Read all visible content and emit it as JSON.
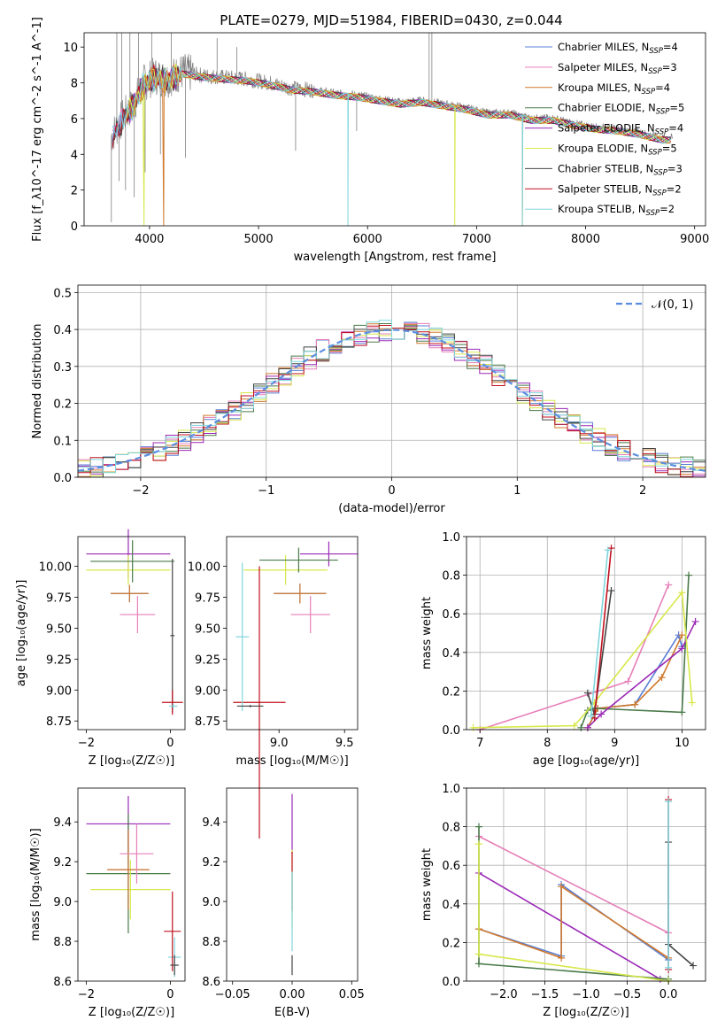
{
  "colors": {
    "Chabrier MILES": "#5b7fd6",
    "Salpeter MILES": "#e67fb8",
    "Kroupa MILES": "#d07a2e",
    "Chabrier ELODIE": "#4a7a4a",
    "Salpeter ELODIE": "#9b2ab6",
    "Kroupa ELODIE": "#d7e84a",
    "Chabrier STELIB": "#444444",
    "Salpeter STELIB": "#c0111f",
    "Kroupa STELIB": "#7fd6dc",
    "data": "#808080",
    "normal": "#5b8ee0"
  },
  "chart_data": [
    {
      "id": "spectrum",
      "type": "line",
      "title": "PLATE=0279, MJD=51984, FIBERID=0430, z=0.044",
      "xlabel": "wavelength [Angstrom, rest frame]",
      "ylabel": "Flux [f_λ10^-17 erg cm^-2 s^-1 A^-1]",
      "xlim": [
        3400,
        9100
      ],
      "ylim": [
        0,
        10.8
      ],
      "xticks": [
        4000,
        5000,
        6000,
        7000,
        8000,
        9000
      ],
      "yticks": [
        0,
        2,
        4,
        6,
        8,
        10
      ],
      "legend_position": "top-right",
      "legend": [
        {
          "label": "Chabrier MILES, N",
          "sub": "SSP",
          "tail": "=4",
          "series": "Chabrier MILES"
        },
        {
          "label": "Salpeter MILES, N",
          "sub": "SSP",
          "tail": "=3",
          "series": "Salpeter MILES"
        },
        {
          "label": "Kroupa MILES, N",
          "sub": "SSP",
          "tail": "=4",
          "series": "Kroupa MILES"
        },
        {
          "label": "Chabrier ELODIE, N",
          "sub": "SSP",
          "tail": "=5",
          "series": "Chabrier ELODIE"
        },
        {
          "label": "Salpeter ELODIE, N",
          "sub": "SSP",
          "tail": "=4",
          "series": "Salpeter ELODIE"
        },
        {
          "label": "Kroupa ELODIE, N",
          "sub": "SSP",
          "tail": "=5",
          "series": "Kroupa ELODIE"
        },
        {
          "label": "Chabrier STELIB, N",
          "sub": "SSP",
          "tail": "=3",
          "series": "Chabrier STELIB"
        },
        {
          "label": "Salpeter STELIB, N",
          "sub": "SSP",
          "tail": "=2",
          "series": "Salpeter STELIB"
        },
        {
          "label": "Kroupa STELIB, N",
          "sub": "SSP",
          "tail": "=2",
          "series": "Kroupa STELIB"
        }
      ],
      "continuum": {
        "x": [
          3650,
          3750,
          3850,
          3950,
          4050,
          4150,
          4300,
          4500,
          4700,
          4900,
          5100,
          5300,
          5500,
          5700,
          5900,
          6100,
          6300,
          6500,
          6700,
          6900,
          7100,
          7300,
          7500,
          7700,
          7900,
          8100,
          8300,
          8500,
          8700,
          8800
        ],
        "y": [
          5.0,
          6.0,
          6.8,
          8.0,
          8.4,
          8.2,
          8.6,
          8.4,
          8.3,
          8.2,
          8.0,
          7.7,
          7.6,
          7.4,
          7.3,
          7.1,
          6.9,
          7.0,
          6.8,
          6.6,
          6.3,
          6.3,
          6.0,
          6.0,
          5.7,
          5.5,
          5.4,
          5.2,
          4.9,
          4.9
        ]
      },
      "dropouts": {
        "Kroupa ELODIE": [
          3950,
          6800
        ],
        "Kroupa MILES": [
          4130,
          7420
        ],
        "Kroupa STELIB": [
          5820,
          7420
        ]
      },
      "data_spikes": [
        {
          "x": 3650,
          "y": 0.2
        },
        {
          "x": 3700,
          "y": 10.8
        },
        {
          "x": 3720,
          "y": 2.5
        },
        {
          "x": 3745,
          "y": 10.8
        },
        {
          "x": 3780,
          "y": 2.0
        },
        {
          "x": 3820,
          "y": 10.8
        },
        {
          "x": 3860,
          "y": 1.6
        },
        {
          "x": 3900,
          "y": 10.8
        },
        {
          "x": 3960,
          "y": 3.0
        },
        {
          "x": 4020,
          "y": 10.8
        },
        {
          "x": 4100,
          "y": 4.0
        },
        {
          "x": 4200,
          "y": 10.8
        },
        {
          "x": 4330,
          "y": 3.8
        },
        {
          "x": 4620,
          "y": 10.5
        },
        {
          "x": 4800,
          "y": 10.0
        },
        {
          "x": 5340,
          "y": 4.2
        },
        {
          "x": 5900,
          "y": 5.3
        },
        {
          "x": 6565,
          "y": 10.8
        },
        {
          "x": 6590,
          "y": 10.8
        }
      ]
    },
    {
      "id": "residuals",
      "type": "histogram",
      "xlabel": "(data-model)/error",
      "ylabel": "Normed distribution",
      "xlim": [
        -2.5,
        2.5
      ],
      "ylim": [
        0,
        0.52
      ],
      "xticks": [
        -2,
        -1,
        0,
        1,
        2
      ],
      "yticks": [
        0.0,
        0.1,
        0.2,
        0.3,
        0.4,
        0.5
      ],
      "legend_position": "top-right",
      "legend": [
        {
          "label": "𝒩(0, 1)",
          "series": "normal"
        }
      ],
      "bin_width": 0.1,
      "grid": true
    },
    {
      "id": "age_vs_Z",
      "type": "errorbar",
      "xlabel": "Z [log₁₀(Z/Z☉)]",
      "ylabel": "age  [log₁₀(age/yr)]",
      "xlim": [
        -2.2,
        0.35
      ],
      "ylim": [
        8.68,
        10.24
      ],
      "xticks": [
        -2,
        0
      ],
      "yticks": [
        8.75,
        9.0,
        9.25,
        9.5,
        9.75,
        10.0
      ],
      "points": [
        {
          "series": "Salpeter ELODIE",
          "x": -1.0,
          "xerr": 1.0,
          "y": 10.1,
          "yerr": 0.2
        },
        {
          "series": "Kroupa ELODIE",
          "x": -1.0,
          "xerr": 1.0,
          "y": 9.97,
          "yerr": 0.12
        },
        {
          "series": "Chabrier ELODIE",
          "x": -0.9,
          "xerr": 1.0,
          "y": 10.04,
          "yerr": 0.17
        },
        {
          "series": "Chabrier MILES",
          "x": -0.97,
          "xerr": 0.45,
          "y": 9.78,
          "yerr": 0.07
        },
        {
          "series": "Kroupa MILES",
          "x": -0.97,
          "xerr": 0.45,
          "y": 9.78,
          "yerr": 0.07
        },
        {
          "series": "Salpeter MILES",
          "x": -0.78,
          "xerr": 0.42,
          "y": 9.61,
          "yerr": 0.15
        },
        {
          "series": "Chabrier STELIB",
          "x": 0.05,
          "xerr": 0.05,
          "y": 9.44,
          "yerr": 0.62
        },
        {
          "series": "Salpeter STELIB",
          "x": 0.05,
          "xerr": 0.25,
          "y": 8.9,
          "yerr": 0.1
        },
        {
          "series": "Kroupa STELIB",
          "x": 0.07,
          "xerr": 0.1,
          "y": 8.87,
          "yerr": 0.02
        }
      ]
    },
    {
      "id": "age_vs_mass",
      "type": "errorbar",
      "xlabel": "mass [log₁₀(M/M☉)]",
      "ylabel": "",
      "xlim": [
        8.6,
        9.6
      ],
      "ylim": [
        8.68,
        10.24
      ],
      "xticks": [
        9.0,
        9.5
      ],
      "yticks": [
        8.75,
        9.0,
        9.25,
        9.5,
        9.75,
        10.0
      ],
      "points": [
        {
          "series": "Salpeter ELODIE",
          "x": 9.38,
          "xerr": 0.22,
          "y": 10.1,
          "yerr": 0.1
        },
        {
          "series": "Kroupa ELODIE",
          "x": 9.05,
          "xerr": 0.32,
          "y": 9.97,
          "yerr": 0.12
        },
        {
          "series": "Chabrier ELODIE",
          "x": 9.15,
          "xerr": 0.3,
          "y": 10.05,
          "yerr": 0.1
        },
        {
          "series": "Chabrier MILES",
          "x": 9.16,
          "xerr": 0.2,
          "y": 9.78,
          "yerr": 0.08
        },
        {
          "series": "Kroupa MILES",
          "x": 9.16,
          "xerr": 0.2,
          "y": 9.78,
          "yerr": 0.08
        },
        {
          "series": "Salpeter MILES",
          "x": 9.24,
          "xerr": 0.15,
          "y": 9.61,
          "yerr": 0.15
        },
        {
          "series": "Salpeter STELIB",
          "x": 8.85,
          "xerr": 0.2,
          "y": 8.9,
          "yerr": 1.1
        },
        {
          "series": "Kroupa STELIB",
          "x": 8.72,
          "xerr": 0.05,
          "y": 9.43,
          "yerr": 0.6
        },
        {
          "series": "Chabrier STELIB",
          "x": 8.78,
          "xerr": 0.1,
          "y": 8.87,
          "yerr": 0.01
        }
      ]
    },
    {
      "id": "weight_vs_age",
      "type": "line",
      "xlabel": "age  [log₁₀(age/yr)]",
      "ylabel": "mass weight",
      "xlim": [
        6.8,
        10.35
      ],
      "ylim": [
        0,
        1.0
      ],
      "xticks": [
        7,
        8,
        9,
        10
      ],
      "yticks": [
        0.0,
        0.2,
        0.4,
        0.6,
        0.8,
        1.0
      ],
      "grid": true,
      "series": [
        {
          "name": "Chabrier MILES",
          "x": [
            8.6,
            8.75,
            9.3,
            9.95,
            10.0
          ],
          "y": [
            0.01,
            0.11,
            0.13,
            0.49,
            0.43
          ]
        },
        {
          "name": "Salpeter MILES",
          "x": [
            7.0,
            9.2,
            9.8
          ],
          "y": [
            0.0,
            0.25,
            0.75
          ]
        },
        {
          "name": "Kroupa MILES",
          "x": [
            8.6,
            8.75,
            9.3,
            9.7,
            10.0
          ],
          "y": [
            0.01,
            0.11,
            0.13,
            0.27,
            0.49
          ]
        },
        {
          "name": "Chabrier ELODIE",
          "x": [
            8.5,
            8.6,
            8.7,
            10.0,
            10.1
          ],
          "y": [
            0.01,
            0.1,
            0.11,
            0.09,
            0.8
          ]
        },
        {
          "name": "Salpeter ELODIE",
          "x": [
            8.6,
            8.8,
            10.0,
            10.2
          ],
          "y": [
            0.01,
            0.08,
            0.42,
            0.56
          ]
        },
        {
          "name": "Kroupa ELODIE",
          "x": [
            6.9,
            8.4,
            8.7,
            10.0,
            10.15
          ],
          "y": [
            0.01,
            0.02,
            0.14,
            0.71,
            0.14
          ]
        },
        {
          "name": "Chabrier STELIB",
          "x": [
            8.6,
            8.7,
            8.95
          ],
          "y": [
            0.19,
            0.08,
            0.72
          ]
        },
        {
          "name": "Salpeter STELIB",
          "x": [
            8.7,
            8.95
          ],
          "y": [
            0.06,
            0.94
          ]
        },
        {
          "name": "Kroupa STELIB",
          "x": [
            8.65,
            8.9
          ],
          "y": [
            0.07,
            0.93
          ]
        }
      ]
    },
    {
      "id": "mass_vs_Z",
      "type": "errorbar",
      "xlabel": "Z [log₁₀(Z/Z☉)]",
      "ylabel": "mass [log₁₀(M/M☉)]",
      "xlim": [
        -2.2,
        0.35
      ],
      "ylim": [
        8.6,
        9.57
      ],
      "xticks": [
        -2,
        0
      ],
      "yticks": [
        8.6,
        8.8,
        9.0,
        9.2,
        9.4
      ],
      "points": [
        {
          "series": "Salpeter ELODIE",
          "x": -1.0,
          "xerr": 1.0,
          "y": 9.39,
          "yerr": 0.14
        },
        {
          "series": "Chabrier ELODIE",
          "x": -1.0,
          "xerr": 1.0,
          "y": 9.14,
          "yerr": 0.3
        },
        {
          "series": "Kroupa ELODIE",
          "x": -0.95,
          "xerr": 0.95,
          "y": 9.06,
          "yerr": 0.15
        },
        {
          "series": "Chabrier MILES",
          "x": -1.0,
          "xerr": 0.5,
          "y": 9.16,
          "yerr": 0.2
        },
        {
          "series": "Kroupa MILES",
          "x": -1.0,
          "xerr": 0.5,
          "y": 9.16,
          "yerr": 0.2
        },
        {
          "series": "Salpeter MILES",
          "x": -0.8,
          "xerr": 0.4,
          "y": 9.24,
          "yerr": 0.15
        },
        {
          "series": "Kroupa STELIB",
          "x": 0.1,
          "xerr": 0.15,
          "y": 8.72,
          "yerr": 0.1
        },
        {
          "series": "Salpeter STELIB",
          "x": 0.05,
          "xerr": 0.2,
          "y": 8.85,
          "yerr": 0.2
        },
        {
          "series": "Chabrier STELIB",
          "x": 0.1,
          "xerr": 0.1,
          "y": 8.68,
          "yerr": 0.05
        }
      ]
    },
    {
      "id": "mass_vs_EBV",
      "type": "errorbar",
      "xlabel": "E(B-V)",
      "ylabel": "",
      "xlim": [
        -0.055,
        0.055
      ],
      "ylim": [
        8.6,
        9.57
      ],
      "xticks": [
        -0.05,
        0.0,
        0.05
      ],
      "yticks": [
        8.6,
        8.8,
        9.0,
        9.2,
        9.4
      ],
      "points": [
        {
          "series": "Salpeter ELODIE",
          "x": 0.0,
          "y": 9.39,
          "yerr": 0.15
        },
        {
          "series": "Kroupa ELODIE",
          "x": 0.0,
          "y": 9.06,
          "yerr": 0.2
        },
        {
          "series": "Salpeter STELIB",
          "x": 0.0,
          "y": 9.1,
          "yerr": 0.15
        },
        {
          "series": "Kroupa STELIB",
          "x": 0.0,
          "y": 8.95,
          "yerr": 0.2
        },
        {
          "series": "Chabrier STELIB",
          "x": 0.0,
          "y": 8.68,
          "yerr": 0.05
        }
      ]
    },
    {
      "id": "weight_vs_Z",
      "type": "line",
      "xlabel": "Z [log₁₀(Z/Z☉)]",
      "ylabel": "mass weight",
      "xlim": [
        -2.45,
        0.45
      ],
      "ylim": [
        0,
        1.0
      ],
      "xticks": [
        -2.0,
        -1.5,
        -1.0,
        -0.5,
        0.0
      ],
      "yticks": [
        0.0,
        0.2,
        0.4,
        0.6,
        0.8,
        1.0
      ],
      "grid": true,
      "series": [
        {
          "name": "Salpeter MILES",
          "x": [
            -2.3,
            0.0
          ],
          "y": [
            0.75,
            0.25
          ]
        },
        {
          "name": "Salpeter ELODIE",
          "x": [
            -2.3,
            -0.1
          ],
          "y": [
            0.56,
            0.01
          ]
        },
        {
          "name": "Chabrier MILES",
          "x": [
            -2.3,
            -1.3,
            -1.3,
            0.0
          ],
          "y": [
            0.27,
            0.13,
            0.5,
            0.11
          ]
        },
        {
          "name": "Kroupa MILES",
          "x": [
            -2.3,
            -1.3,
            -1.3,
            0.0
          ],
          "y": [
            0.27,
            0.12,
            0.49,
            0.12
          ]
        },
        {
          "name": "Chabrier ELODIE",
          "x": [
            -2.3,
            -2.3,
            0.0
          ],
          "y": [
            0.8,
            0.09,
            0.01
          ]
        },
        {
          "name": "Kroupa ELODIE",
          "x": [
            -2.3,
            -2.3,
            0.0
          ],
          "y": [
            0.71,
            0.14,
            0.0
          ]
        },
        {
          "name": "Chabrier STELIB",
          "x": [
            0.0,
            0.0,
            0.3
          ],
          "y": [
            0.72,
            0.19,
            0.08
          ]
        },
        {
          "name": "Salpeter STELIB",
          "x": [
            0.0,
            0.0
          ],
          "y": [
            0.94,
            0.06
          ]
        },
        {
          "name": "Kroupa STELIB",
          "x": [
            0.0,
            0.0
          ],
          "y": [
            0.93,
            0.07
          ]
        }
      ]
    }
  ]
}
